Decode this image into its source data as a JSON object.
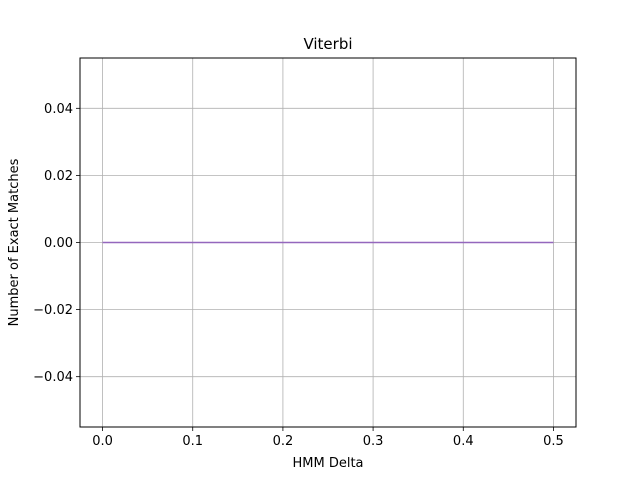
{
  "chart_data": {
    "type": "line",
    "title": "Viterbi",
    "xlabel": "HMM Delta",
    "ylabel": "Number of Exact Matches",
    "xlim": [
      -0.025,
      0.525
    ],
    "ylim": [
      -0.055,
      0.055
    ],
    "x_ticks": [
      0.0,
      0.1,
      0.2,
      0.3,
      0.4,
      0.5
    ],
    "x_tick_labels": [
      "0.0",
      "0.1",
      "0.2",
      "0.3",
      "0.4",
      "0.5"
    ],
    "y_ticks": [
      -0.04,
      -0.02,
      0.0,
      0.02,
      0.04
    ],
    "y_tick_labels": [
      "−0.04",
      "−0.02",
      "0.00",
      "0.02",
      "0.04"
    ],
    "grid": true,
    "series": [
      {
        "color": "#9467bd",
        "x": [
          0.0,
          0.1,
          0.2,
          0.3,
          0.4,
          0.5
        ],
        "y": [
          0,
          0,
          0,
          0,
          0,
          0
        ]
      }
    ]
  }
}
